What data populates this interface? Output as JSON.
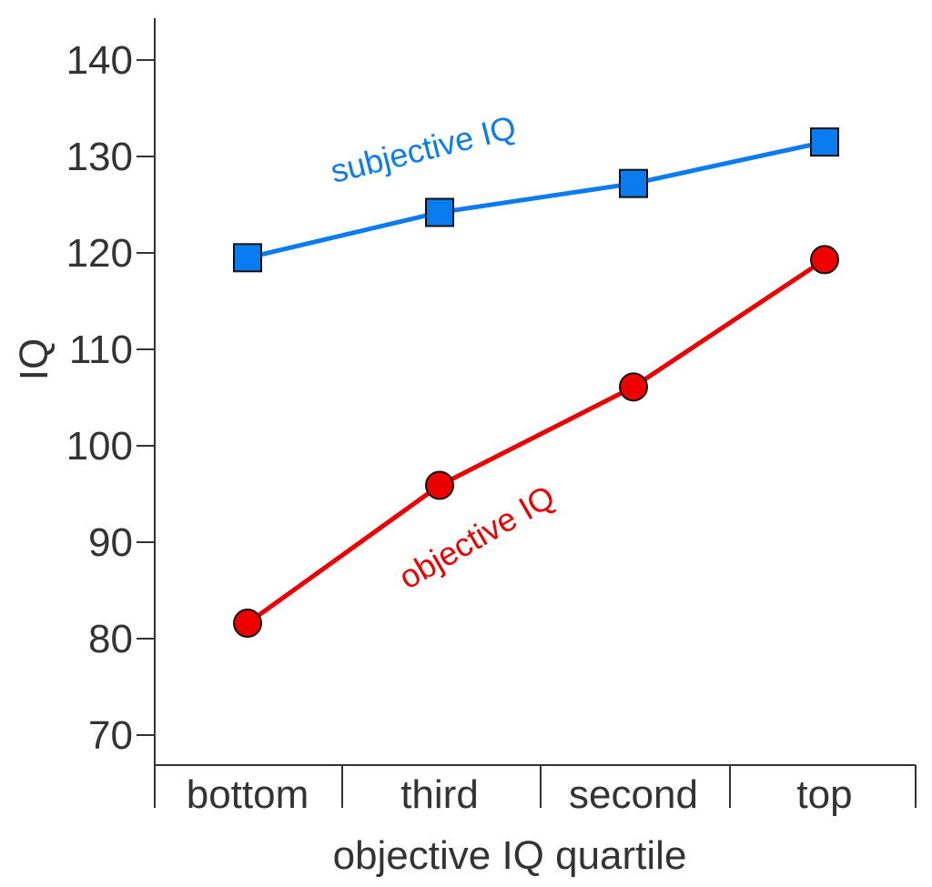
{
  "chart_data": {
    "type": "line",
    "title": "",
    "xlabel": "objective IQ quartile",
    "ylabel": "IQ",
    "categories": [
      "bottom",
      "third",
      "second",
      "top"
    ],
    "ylim": [
      65,
      145
    ],
    "yticks": [
      70,
      80,
      90,
      100,
      110,
      120,
      130,
      140
    ],
    "grid": false,
    "legend": "none",
    "series": [
      {
        "name": "subjective IQ",
        "values": [
          119.5,
          124.2,
          127.2,
          131.5
        ],
        "color": "#0a7cf0",
        "marker": "square"
      },
      {
        "name": "objective IQ",
        "values": [
          81.6,
          95.9,
          106.1,
          119.3
        ],
        "color": "#ee0000",
        "marker": "circle"
      }
    ]
  }
}
